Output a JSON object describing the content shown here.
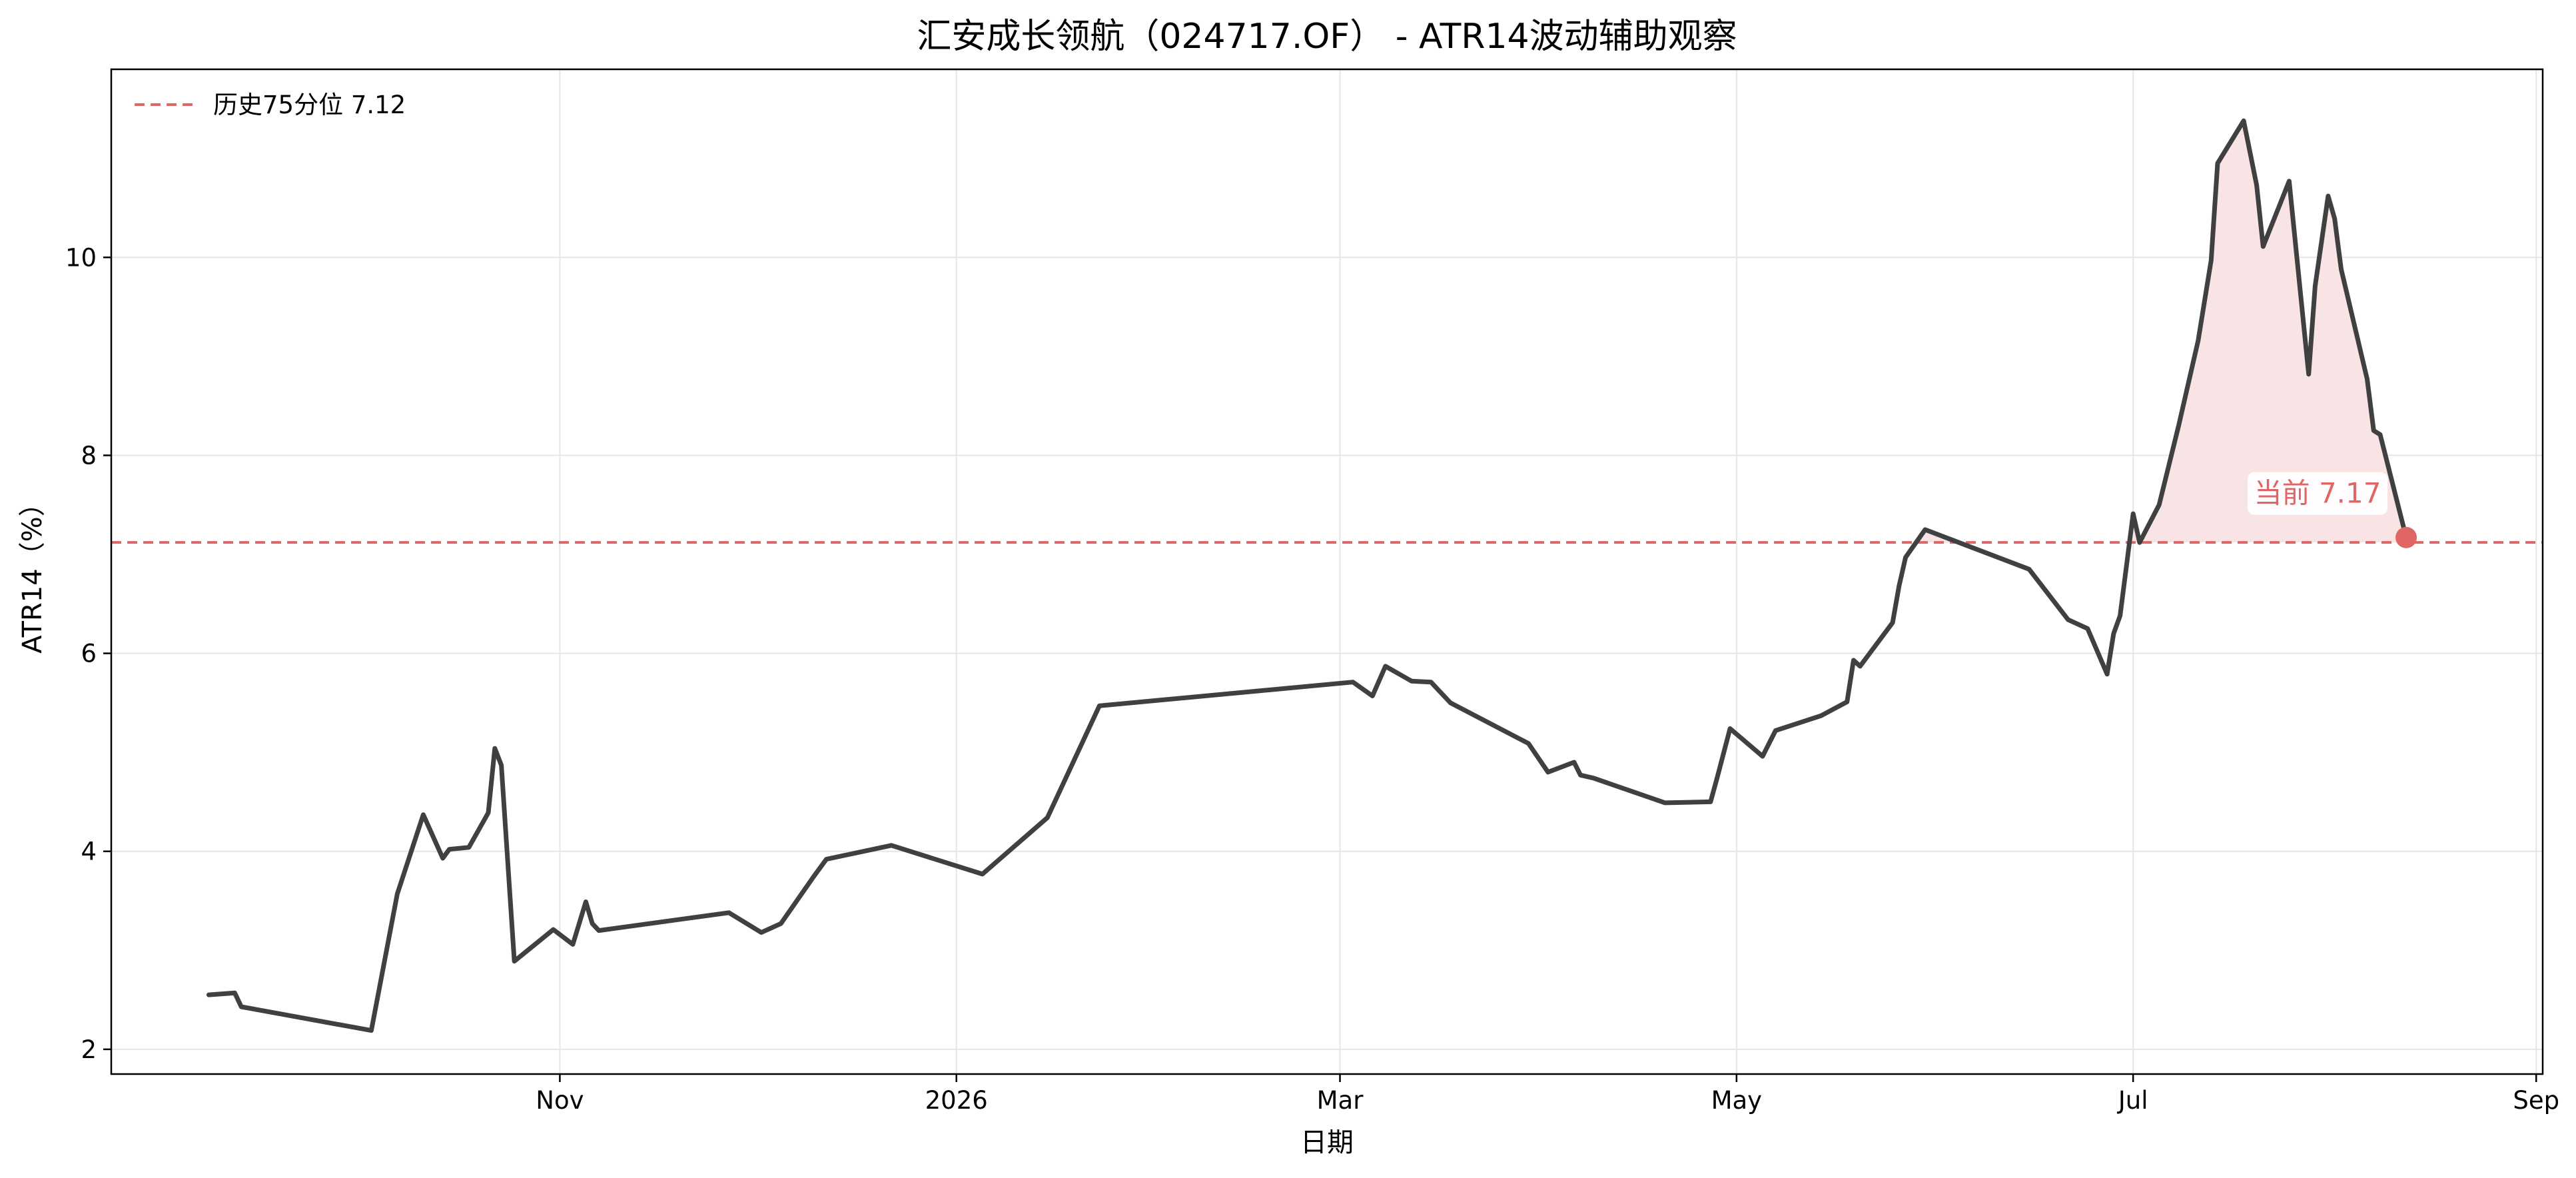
{
  "chart_data": {
    "type": "line",
    "title": "汇安成长领航（024717.OF） - ATR14波动辅助观察",
    "xlabel": "日期",
    "ylabel": "ATR14（%）",
    "xlim": [
      "2025-08-24",
      "2026-09-02"
    ],
    "ylim": [
      1.75,
      11.9
    ],
    "grid": true,
    "legend_position": "top-left",
    "x_ticks": [
      {
        "date": "2025-11-01",
        "label": "Nov"
      },
      {
        "date": "2026-01-01",
        "label": "2026"
      },
      {
        "date": "2026-03-01",
        "label": "Mar"
      },
      {
        "date": "2026-05-01",
        "label": "May"
      },
      {
        "date": "2026-07-01",
        "label": "Jul"
      },
      {
        "date": "2026-09-01",
        "label": "Sep"
      }
    ],
    "y_ticks": [
      2,
      4,
      6,
      8,
      10
    ],
    "series": [
      {
        "color": "#404040",
        "points": [
          [
            "2025-09-08",
            2.55
          ],
          [
            "2025-09-12",
            2.57
          ],
          [
            "2025-09-13",
            2.43
          ],
          [
            "2025-10-03",
            2.19
          ],
          [
            "2025-10-07",
            3.57
          ],
          [
            "2025-10-11",
            4.37
          ],
          [
            "2025-10-14",
            3.93
          ],
          [
            "2025-10-15",
            4.02
          ],
          [
            "2025-10-18",
            4.04
          ],
          [
            "2025-10-21",
            4.39
          ],
          [
            "2025-10-22",
            5.04
          ],
          [
            "2025-10-23",
            4.87
          ],
          [
            "2025-10-25",
            2.89
          ],
          [
            "2025-10-31",
            3.21
          ],
          [
            "2025-11-03",
            3.06
          ],
          [
            "2025-11-05",
            3.49
          ],
          [
            "2025-11-06",
            3.27
          ],
          [
            "2025-11-07",
            3.2
          ],
          [
            "2025-11-27",
            3.38
          ],
          [
            "2025-12-02",
            3.18
          ],
          [
            "2025-12-05",
            3.27
          ],
          [
            "2025-12-10",
            3.74
          ],
          [
            "2025-12-12",
            3.92
          ],
          [
            "2025-12-22",
            4.06
          ],
          [
            "2026-01-05",
            3.77
          ],
          [
            "2026-01-15",
            4.34
          ],
          [
            "2026-01-23",
            5.47
          ],
          [
            "2026-03-03",
            5.71
          ],
          [
            "2026-03-06",
            5.57
          ],
          [
            "2026-03-08",
            5.87
          ],
          [
            "2026-03-12",
            5.72
          ],
          [
            "2026-03-15",
            5.71
          ],
          [
            "2026-03-18",
            5.5
          ],
          [
            "2026-03-30",
            5.09
          ],
          [
            "2026-04-02",
            4.8
          ],
          [
            "2026-04-06",
            4.9
          ],
          [
            "2026-04-07",
            4.77
          ],
          [
            "2026-04-09",
            4.74
          ],
          [
            "2026-04-20",
            4.49
          ],
          [
            "2026-04-27",
            4.5
          ],
          [
            "2026-04-28",
            4.74
          ],
          [
            "2026-04-30",
            5.24
          ],
          [
            "2026-05-05",
            4.96
          ],
          [
            "2026-05-07",
            5.22
          ],
          [
            "2026-05-14",
            5.37
          ],
          [
            "2026-05-18",
            5.51
          ],
          [
            "2026-05-19",
            5.93
          ],
          [
            "2026-05-20",
            5.87
          ],
          [
            "2026-05-25",
            6.31
          ],
          [
            "2026-05-26",
            6.68
          ],
          [
            "2026-05-27",
            6.97
          ],
          [
            "2026-05-30",
            7.25
          ],
          [
            "2026-06-15",
            6.85
          ],
          [
            "2026-06-21",
            6.34
          ],
          [
            "2026-06-24",
            6.25
          ],
          [
            "2026-06-27",
            5.79
          ],
          [
            "2026-06-28",
            6.2
          ],
          [
            "2026-06-29",
            6.38
          ],
          [
            "2026-07-01",
            7.41
          ],
          [
            "2026-07-02",
            7.12
          ],
          [
            "2026-07-05",
            7.5
          ],
          [
            "2026-07-08",
            8.3
          ],
          [
            "2026-07-11",
            9.16
          ],
          [
            "2026-07-13",
            9.97
          ],
          [
            "2026-07-14",
            10.95
          ],
          [
            "2026-07-18",
            11.38
          ],
          [
            "2026-07-20",
            10.73
          ],
          [
            "2026-07-21",
            10.11
          ],
          [
            "2026-07-25",
            10.77
          ],
          [
            "2026-07-28",
            8.82
          ],
          [
            "2026-07-29",
            9.71
          ],
          [
            "2026-07-31",
            10.62
          ],
          [
            "2026-08-01",
            10.39
          ],
          [
            "2026-08-02",
            9.88
          ],
          [
            "2026-08-06",
            8.77
          ],
          [
            "2026-08-07",
            8.25
          ],
          [
            "2026-08-08",
            8.21
          ],
          [
            "2026-08-12",
            7.17
          ]
        ]
      }
    ],
    "reference_line": {
      "label": "历史75分位 7.12",
      "value": 7.12,
      "color": "#e06666",
      "style": "dashed"
    },
    "current_marker": {
      "label": "当前 7.17",
      "date": "2026-08-12",
      "value": 7.17,
      "color": "#e06666"
    },
    "fill_above_reference_color": "#f8e4e4"
  }
}
